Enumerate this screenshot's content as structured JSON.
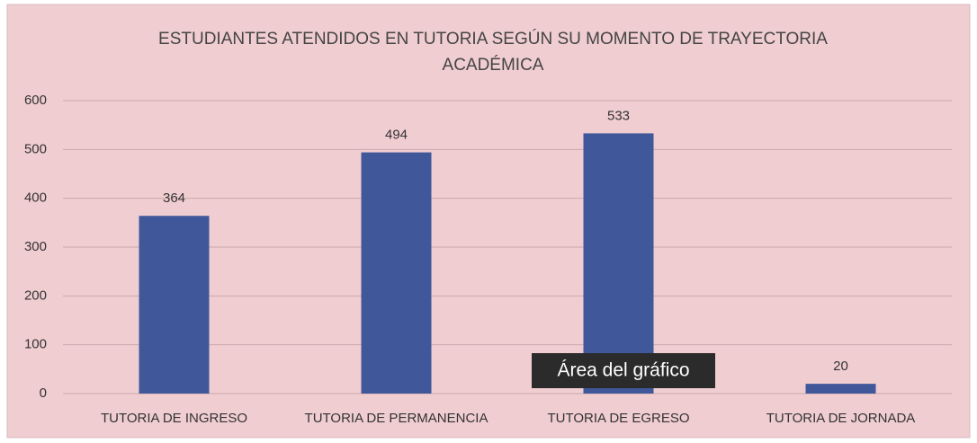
{
  "chart_data": {
    "type": "bar",
    "title": [
      "ESTUDIANTES ATENDIDOS EN TUTORIA SEGÚN  SU MOMENTO DE TRAYECTORIA",
      "ACADÉMICA"
    ],
    "categories": [
      "TUTORIA DE INGRESO",
      "TUTORIA DE PERMANENCIA",
      "TUTORIA DE EGRESO",
      "TUTORIA DE JORNADA"
    ],
    "values": [
      364,
      494,
      533,
      20
    ],
    "color": "#40589a",
    "ylim": [
      0,
      600
    ],
    "yticks": [
      0,
      100,
      200,
      300,
      400,
      500,
      600
    ],
    "grid": true,
    "tooltip": "Área del gráfico"
  }
}
